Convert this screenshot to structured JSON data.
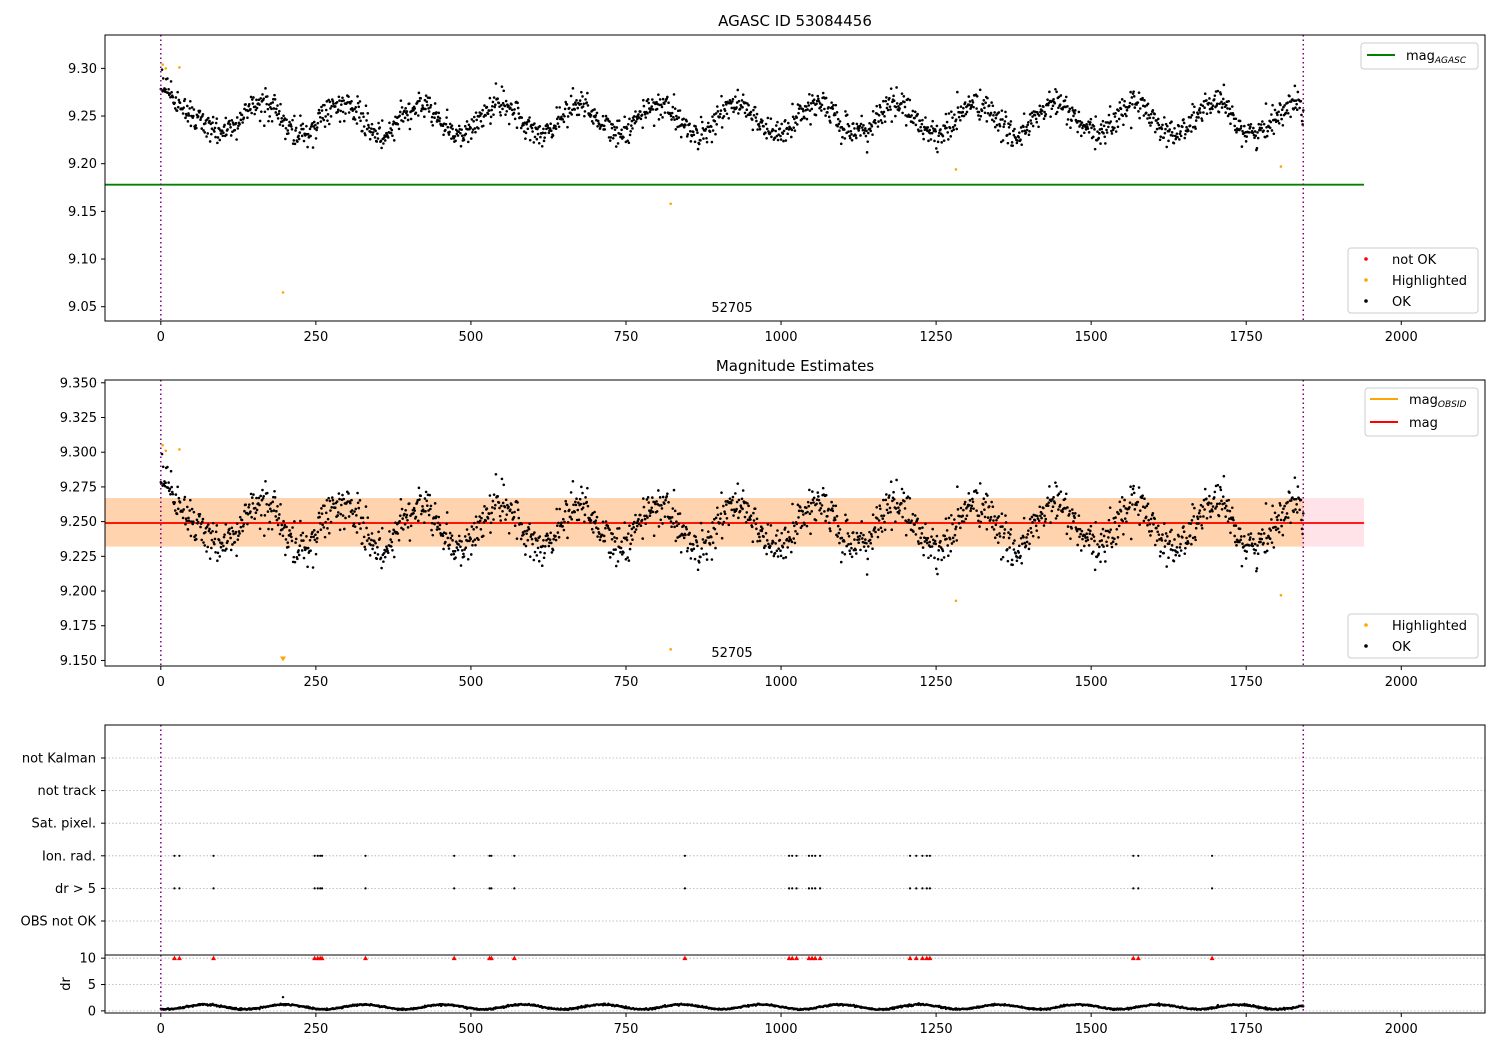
{
  "chart_data": [
    {
      "type": "scatter",
      "title": "AGASC ID 53084456",
      "xlim": [
        -90,
        2135
      ],
      "ylim": [
        9.035,
        9.335
      ],
      "xticks": [
        0,
        250,
        500,
        750,
        1000,
        1250,
        1500,
        1750,
        2000
      ],
      "xtick_labels": [
        "0",
        "250",
        "500",
        "750",
        "1000",
        "1250",
        "1500",
        "1750",
        "2000"
      ],
      "yticks": [
        9.05,
        9.1,
        9.15,
        9.2,
        9.25,
        9.3
      ],
      "ytick_labels": [
        "9.05",
        "9.10",
        "9.15",
        "9.20",
        "9.25",
        "9.30"
      ],
      "grid": false,
      "obsid_boundaries": [
        0,
        1842
      ],
      "obsid_label": {
        "text": "52705",
        "x": 920,
        "y": 9.048
      },
      "reference_lines": [
        {
          "name": "mag_AGASC",
          "legend_main": "mag",
          "legend_sub": "AGASC",
          "y": 9.178,
          "x_range": [
            -90,
            1940
          ],
          "color": "#008000"
        }
      ],
      "legend_top": {
        "position": "top-right",
        "entries": [
          {
            "label": "mag",
            "sub": "AGASC",
            "color": "#008000",
            "kind": "line"
          }
        ]
      },
      "legend_bottom": {
        "position": "bottom-right",
        "entries": [
          {
            "label": "not OK",
            "color": "#ff0000",
            "kind": "dot"
          },
          {
            "label": "Highlighted",
            "color": "#ffa500",
            "kind": "dot"
          },
          {
            "label": "OK",
            "color": "#000000",
            "kind": "dot"
          }
        ]
      },
      "series": [
        {
          "name": "OK",
          "color": "#000000",
          "generator": "magnitude_trace",
          "x_range": [
            0,
            1842
          ],
          "n": 1900
        },
        {
          "name": "Highlighted",
          "color": "#ffa500",
          "points": [
            [
              3,
              9.304
            ],
            [
              8,
              9.3
            ],
            [
              30,
              9.301
            ],
            [
              197,
              9.065
            ],
            [
              822,
              9.158
            ],
            [
              1282,
              9.194
            ],
            [
              1806,
              9.197
            ]
          ]
        }
      ]
    },
    {
      "type": "scatter",
      "title": "Magnitude Estimates",
      "xlim": [
        -90,
        2135
      ],
      "ylim": [
        9.146,
        9.352
      ],
      "xticks": [
        0,
        250,
        500,
        750,
        1000,
        1250,
        1500,
        1750,
        2000
      ],
      "xtick_labels": [
        "0",
        "250",
        "500",
        "750",
        "1000",
        "1250",
        "1500",
        "1750",
        "2000"
      ],
      "yticks": [
        9.15,
        9.175,
        9.2,
        9.225,
        9.25,
        9.275,
        9.3,
        9.325,
        9.35
      ],
      "ytick_labels": [
        "9.150",
        "9.175",
        "9.200",
        "9.225",
        "9.250",
        "9.275",
        "9.300",
        "9.325",
        "9.350"
      ],
      "grid": false,
      "obsid_boundaries": [
        0,
        1842
      ],
      "obsid_label": {
        "text": "52705",
        "x": 920,
        "y": 9.15
      },
      "bands": [
        {
          "name": "mag band",
          "y_range": [
            9.232,
            9.267
          ],
          "x_range": [
            -90,
            1940
          ],
          "color": "#ffc0cb",
          "opacity": 0.45
        },
        {
          "name": "mag_OBSID band",
          "y_range": [
            9.232,
            9.267
          ],
          "x_range": [
            -90,
            1842
          ],
          "color": "#ffa500",
          "opacity": 0.25
        }
      ],
      "reference_lines": [
        {
          "name": "mag_OBSID",
          "y": 9.249,
          "x_range": [
            -90,
            1842
          ],
          "color": "#ffa500"
        },
        {
          "name": "mag",
          "y": 9.249,
          "x_range": [
            -90,
            1940
          ],
          "color": "#ff0000"
        }
      ],
      "legend_top": {
        "position": "top-right",
        "entries": [
          {
            "label": "mag",
            "sub": "OBSID",
            "color": "#ffa500",
            "kind": "line"
          },
          {
            "label": "mag",
            "sub": "",
            "color": "#ff0000",
            "kind": "line"
          }
        ]
      },
      "legend_bottom": {
        "position": "bottom-right",
        "entries": [
          {
            "label": "Highlighted",
            "color": "#ffa500",
            "kind": "dot"
          },
          {
            "label": "OK",
            "color": "#000000",
            "kind": "dot"
          }
        ]
      },
      "series": [
        {
          "name": "OK",
          "color": "#000000",
          "generator": "magnitude_trace",
          "x_range": [
            0,
            1842
          ],
          "n": 1900
        },
        {
          "name": "Highlighted",
          "color": "#ffa500",
          "points": [
            [
              3,
              9.305
            ],
            [
              8,
              9.301
            ],
            [
              30,
              9.302
            ],
            [
              822,
              9.158
            ],
            [
              1282,
              9.193
            ],
            [
              1806,
              9.197
            ]
          ]
        },
        {
          "name": "Highlighted (off-scale)",
          "color": "#ffa500",
          "marker": "triangle-down",
          "points": [
            [
              197,
              9.15
            ]
          ]
        }
      ]
    },
    {
      "type": "scatter",
      "title": "",
      "xlim": [
        -90,
        2135
      ],
      "xticks": [
        0,
        250,
        500,
        750,
        1000,
        1250,
        1500,
        1750,
        2000
      ],
      "xtick_labels": [
        "0",
        "250",
        "500",
        "750",
        "1000",
        "1250",
        "1500",
        "1750",
        "2000"
      ],
      "obsid_boundaries": [
        0,
        1842
      ],
      "flag_rows": [
        "not Kalman",
        "not track",
        "Sat. pixel.",
        "Ion. rad.",
        "dr > 5",
        "OBS not OK"
      ],
      "flag_grid": true,
      "flag_events": {
        "Ion. rad.": [
          22,
          30,
          85,
          248,
          253,
          257,
          260,
          330,
          473,
          530,
          533,
          570,
          845,
          1013,
          1018,
          1025,
          1045,
          1050,
          1055,
          1063,
          1208,
          1218,
          1228,
          1235,
          1240,
          1568,
          1576,
          1695
        ],
        "dr > 5": [
          22,
          30,
          85,
          248,
          253,
          257,
          260,
          330,
          473,
          530,
          533,
          570,
          845,
          1013,
          1018,
          1025,
          1045,
          1050,
          1055,
          1063,
          1208,
          1218,
          1228,
          1235,
          1240,
          1568,
          1576,
          1695
        ]
      },
      "dr": {
        "ylabel": "dr",
        "ylim": [
          -0.4,
          10.6
        ],
        "yticks": [
          0,
          5,
          10
        ],
        "ytick_labels": [
          "0",
          "5",
          "10"
        ],
        "clip_value": 10,
        "clipped_x": [
          22,
          30,
          85,
          248,
          253,
          257,
          260,
          330,
          473,
          530,
          533,
          570,
          845,
          1013,
          1018,
          1025,
          1045,
          1050,
          1055,
          1063,
          1208,
          1218,
          1228,
          1235,
          1240,
          1568,
          1576,
          1695
        ],
        "outlier": [
          197,
          2.6
        ],
        "series_generator": "dr_trace",
        "n": 1900
      }
    }
  ]
}
